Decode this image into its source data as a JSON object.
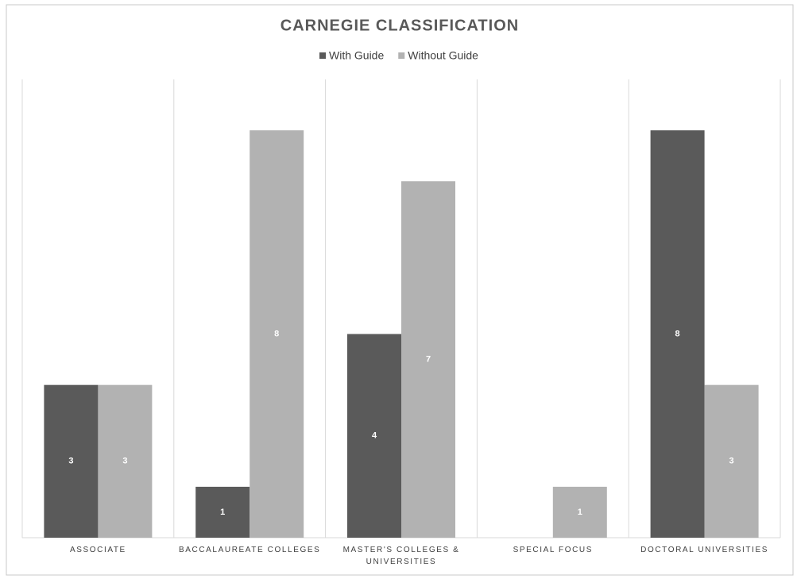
{
  "chart_data": {
    "type": "bar",
    "title": "CARNEGIE CLASSIFICATION",
    "categories": [
      "ASSOCIATE",
      "BACCALAUREATE COLLEGES",
      "MASTER'S COLLEGES & UNIVERSITIES",
      "SPECIAL FOCUS",
      "DOCTORAL UNIVERSITIES"
    ],
    "series": [
      {
        "name": "With Guide",
        "color": "#5a5a5a",
        "values": [
          3,
          1,
          4,
          null,
          8
        ]
      },
      {
        "name": "Without Guide",
        "color": "#b2b2b2",
        "values": [
          3,
          8,
          7,
          1,
          3
        ]
      }
    ],
    "ylim": [
      0,
      9
    ],
    "legend": "top"
  }
}
